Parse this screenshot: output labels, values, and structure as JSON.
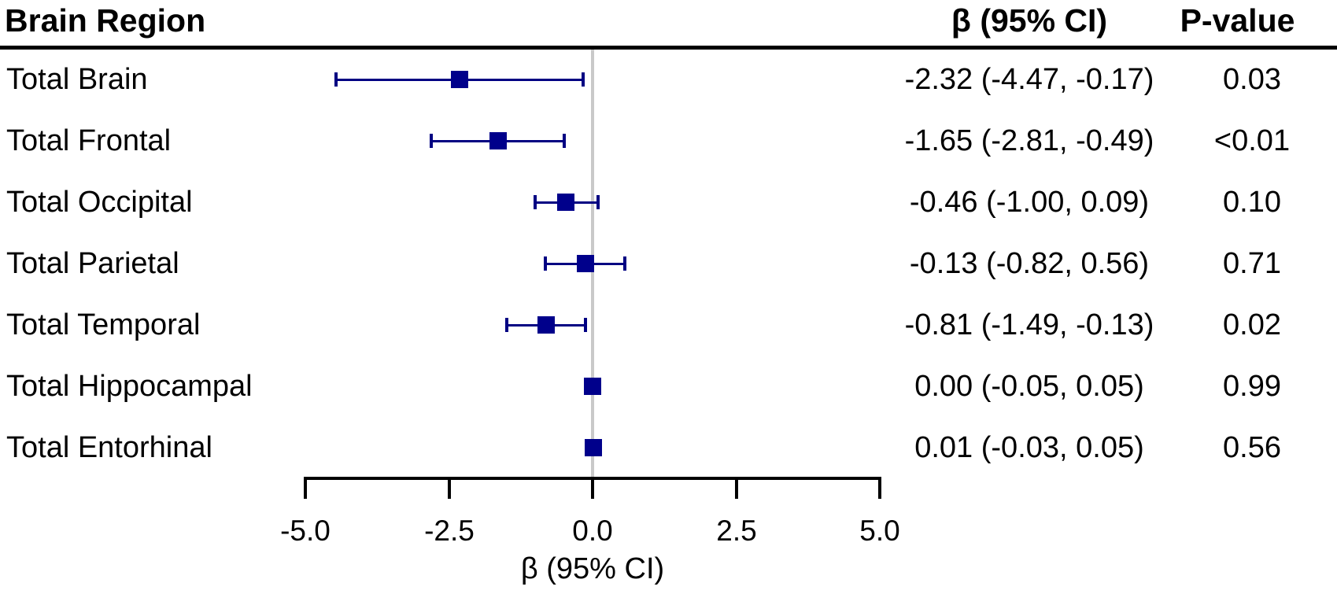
{
  "figure": {
    "type": "forest-plot",
    "columns": {
      "region": "Brain Region",
      "beta_ci": "β (95% CI)",
      "p_value": "P-value"
    }
  },
  "axis": {
    "title": "β (95% CI)",
    "min": -5.0,
    "max": 5.0,
    "tick_labels": [
      "-5.0",
      "-2.5",
      "0.0",
      "2.5",
      "5.0"
    ]
  },
  "colors": {
    "marker": "#00008b",
    "ci_line": "#000082",
    "zero_reference_line": "#c9c9c9",
    "text": "#000000",
    "background": "#ffffff"
  },
  "chart_data": {
    "type": "forest",
    "title": "",
    "xlabel": "β (95% CI)",
    "xlim": [
      -5.0,
      5.0
    ],
    "x_ticks": [
      -5.0,
      -2.5,
      0.0,
      2.5,
      5.0
    ],
    "columns": [
      "Brain Region",
      "β (95% CI)",
      "P-value"
    ],
    "rows": [
      {
        "label": "Total Brain",
        "beta": -2.32,
        "ci_low": -4.47,
        "ci_high": -0.17,
        "beta_ci_text": "-2.32 (-4.47, -0.17)",
        "p_value": "0.03"
      },
      {
        "label": "Total Frontal",
        "beta": -1.65,
        "ci_low": -2.81,
        "ci_high": -0.49,
        "beta_ci_text": "-1.65 (-2.81, -0.49)",
        "p_value": "<0.01"
      },
      {
        "label": "Total Occipital",
        "beta": -0.46,
        "ci_low": -1.0,
        "ci_high": 0.09,
        "beta_ci_text": "-0.46 (-1.00, 0.09)",
        "p_value": "0.10"
      },
      {
        "label": "Total Parietal",
        "beta": -0.13,
        "ci_low": -0.82,
        "ci_high": 0.56,
        "beta_ci_text": "-0.13 (-0.82, 0.56)",
        "p_value": "0.71"
      },
      {
        "label": "Total Temporal",
        "beta": -0.81,
        "ci_low": -1.49,
        "ci_high": -0.13,
        "beta_ci_text": "-0.81 (-1.49, -0.13)",
        "p_value": "0.02"
      },
      {
        "label": "Total Hippocampal",
        "beta": 0.0,
        "ci_low": -0.05,
        "ci_high": 0.05,
        "beta_ci_text": "0.00 (-0.05, 0.05)",
        "p_value": "0.99"
      },
      {
        "label": "Total Entorhinal",
        "beta": 0.01,
        "ci_low": -0.03,
        "ci_high": 0.05,
        "beta_ci_text": "0.01 (-0.03, 0.05)",
        "p_value": "0.56"
      }
    ]
  }
}
